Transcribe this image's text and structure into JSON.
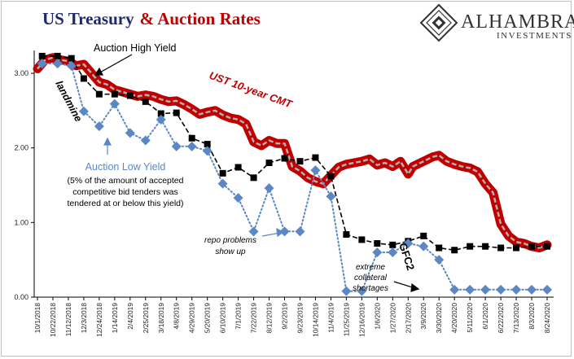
{
  "header": {
    "title_part1": "US Treasury",
    "title_part2": "& Auction Rates",
    "title_color_1": "#1f2a6b",
    "title_color_2": "#c00000",
    "logo_name": "ALHAMBRA",
    "logo_sub": "INVESTMENTS",
    "logo_icon": "alhambra-diamond-logo-icon"
  },
  "chart_data": {
    "type": "line",
    "title": "US Treasury & Auction Rates",
    "xlabel": "",
    "ylabel": "",
    "ylim": [
      0,
      3.3
    ],
    "yticks": [
      "0.00",
      "1.00",
      "2.00",
      "3.00"
    ],
    "grid": false,
    "x_tick_labels": [
      "10/1/2018",
      "10/22/2018",
      "11/12/2018",
      "12/3/2018",
      "12/24/2018",
      "1/14/2019",
      "2/4/2019",
      "2/25/2019",
      "3/18/2019",
      "4/8/2019",
      "4/29/2019",
      "5/20/2019",
      "6/10/2019",
      "7/1/2019",
      "7/22/2019",
      "8/12/2019",
      "9/2/2019",
      "9/23/2019",
      "10/14/2019",
      "11/4/2019",
      "11/25/2019",
      "12/16/2019",
      "1/6/2020",
      "1/27/2020",
      "2/17/2020",
      "3/9/2020",
      "3/30/2020",
      "4/20/2020",
      "5/11/2020",
      "6/1/2020",
      "6/22/2020",
      "7/13/2020",
      "8/3/2020",
      "8/24/2020"
    ],
    "series": [
      {
        "name": "UST 10-year CMT",
        "color": "#c00000",
        "style": "thick-band",
        "x": [
          0,
          0.5,
          1,
          1.5,
          2,
          2.5,
          3,
          3.5,
          4,
          4.5,
          5,
          5.5,
          6,
          6.5,
          7,
          7.5,
          8,
          8.5,
          9,
          9.5,
          10,
          10.5,
          11,
          11.5,
          12,
          12.5,
          13,
          13.5,
          14,
          14.5,
          15,
          15.5,
          16,
          16.5,
          17,
          17.5,
          18,
          18.5,
          19,
          19.5,
          20,
          20.5,
          21,
          21.5,
          22,
          22.5,
          23,
          23.5,
          24,
          24.3,
          24.6,
          25,
          25.3,
          25.6,
          26,
          26.5,
          27,
          27.5,
          28,
          28.5,
          29,
          29.5,
          30,
          30.5,
          31,
          31.5,
          32,
          32.5,
          33
        ],
        "values": [
          3.06,
          3.18,
          3.21,
          3.18,
          3.16,
          3.1,
          3.12,
          3.0,
          2.88,
          2.85,
          2.78,
          2.75,
          2.72,
          2.69,
          2.71,
          2.69,
          2.65,
          2.62,
          2.63,
          2.58,
          2.52,
          2.45,
          2.48,
          2.5,
          2.44,
          2.4,
          2.38,
          2.32,
          2.08,
          2.03,
          2.1,
          2.06,
          2.06,
          1.75,
          1.69,
          1.6,
          1.55,
          1.52,
          1.63,
          1.74,
          1.78,
          1.8,
          1.82,
          1.85,
          1.77,
          1.8,
          1.75,
          1.82,
          1.65,
          1.75,
          1.78,
          1.82,
          1.85,
          1.88,
          1.9,
          1.82,
          1.78,
          1.75,
          1.73,
          1.68,
          1.52,
          1.4,
          0.98,
          0.82,
          0.74,
          0.72,
          0.68,
          0.66,
          0.7
        ]
      },
      {
        "name": "Auction High Yield",
        "color": "#000000",
        "style": "dashed-squares",
        "x": [
          0.3,
          1.3,
          2.2,
          3,
          4,
          5,
          6,
          7,
          8,
          9,
          10,
          11,
          12,
          13,
          14,
          15,
          16,
          17,
          18,
          19,
          20,
          21,
          22,
          23,
          24,
          25,
          26,
          27,
          28,
          29,
          30,
          31,
          32,
          33
        ],
        "values": [
          3.23,
          3.23,
          3.2,
          2.93,
          2.72,
          2.72,
          2.7,
          2.62,
          2.46,
          2.47,
          2.13,
          2.05,
          1.66,
          1.74,
          1.6,
          1.8,
          1.86,
          1.82,
          1.87,
          1.62,
          0.84,
          0.77,
          0.72,
          0.7,
          0.75,
          0.82,
          0.66,
          0.63,
          0.68,
          0.68,
          0.66,
          0.66,
          0.68,
          0.68
        ]
      },
      {
        "name": "Auction Low Yield",
        "color": "#5b87c5",
        "style": "dotted-diamonds",
        "x": [
          0.3,
          1.3,
          2.2,
          3,
          4,
          5,
          6,
          7,
          8,
          9,
          10,
          11,
          12,
          13,
          14,
          15,
          16,
          17,
          18,
          19,
          20,
          21,
          22,
          23,
          24,
          25,
          26,
          27,
          28,
          29,
          30,
          31,
          32,
          33
        ],
        "values": [
          3.13,
          3.13,
          3.1,
          2.49,
          2.29,
          2.59,
          2.2,
          2.1,
          2.38,
          2.02,
          2.02,
          1.96,
          1.52,
          1.33,
          0.88,
          1.46,
          0.88,
          0.88,
          1.7,
          1.35,
          0.08,
          0.08,
          0.6,
          0.6,
          0.72,
          0.68,
          0.5,
          0.1,
          0.1,
          0.1,
          0.1,
          0.1,
          0.1,
          0.1
        ]
      }
    ],
    "annotations": [
      {
        "key": "auction_high",
        "text": "Auction High Yield"
      },
      {
        "key": "landmine",
        "text": "landmine"
      },
      {
        "key": "ust_label",
        "text": "UST 10-year CMT"
      },
      {
        "key": "auction_low",
        "text": "Auction Low Yield"
      },
      {
        "key": "auction_low_note_1",
        "text": "(5% of the amount of accepted"
      },
      {
        "key": "auction_low_note_2",
        "text": "competitive bid tenders was"
      },
      {
        "key": "auction_low_note_3",
        "text": "tendered at or below this yield)"
      },
      {
        "key": "repo_1",
        "text": "repo problems"
      },
      {
        "key": "repo_2",
        "text": "show up"
      },
      {
        "key": "gfc2",
        "text": "GFC2"
      },
      {
        "key": "extreme_1",
        "text": "extreme"
      },
      {
        "key": "extreme_2",
        "text": "collateral"
      },
      {
        "key": "extreme_3",
        "text": "shortages"
      }
    ]
  }
}
